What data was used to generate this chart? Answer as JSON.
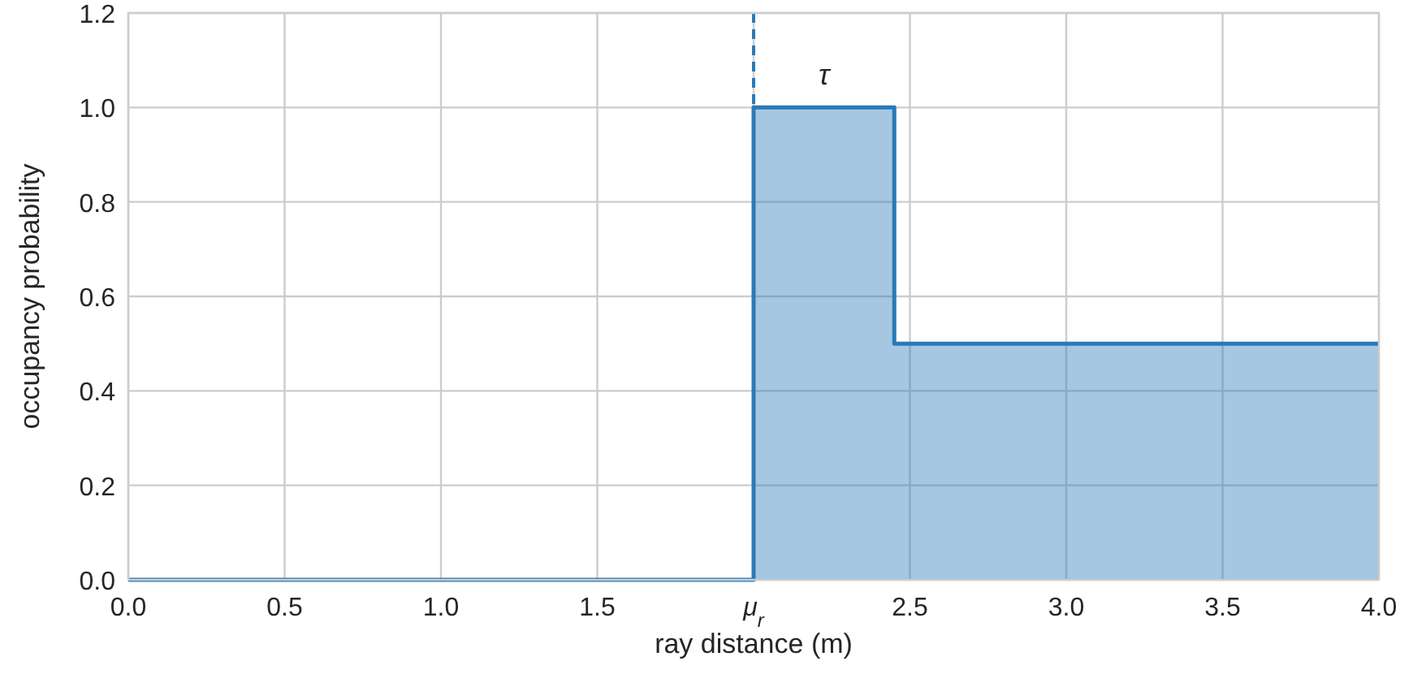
{
  "chart_data": {
    "type": "area",
    "xlabel": "ray distance (m)",
    "ylabel": "occupancy probability",
    "series": [
      {
        "color": "#2a7ab8",
        "x": [
          0,
          2,
          2,
          2.45,
          2.45,
          4
        ],
        "values": [
          0,
          0,
          1,
          1,
          0.5,
          0.5
        ]
      }
    ],
    "xlim": [
      0,
      4
    ],
    "xticks": [
      {
        "value": 0,
        "label": "0.0"
      },
      0.5,
      {
        "value": 1,
        "label": "1.0"
      },
      1.5,
      {
        "value": 2,
        "label": "μ$_{r}$"
      },
      2.5,
      {
        "value": 3,
        "label": "3.0"
      },
      3.5,
      {
        "value": 4,
        "label": "4.0"
      }
    ],
    "ylim": [
      0,
      1.2
    ],
    "yticks": [
      {
        "value": 0,
        "label": "0.0"
      },
      0.2,
      0.4,
      0.6,
      0.8,
      {
        "value": 1,
        "label": "1.0"
      },
      1.2
    ],
    "grid": true,
    "ref_lines": [
      {
        "axis": "x",
        "value": 2,
        "color": "#2a7ab8",
        "line_style": "dashed"
      }
    ],
    "annotations": [
      "τ"
    ]
  }
}
